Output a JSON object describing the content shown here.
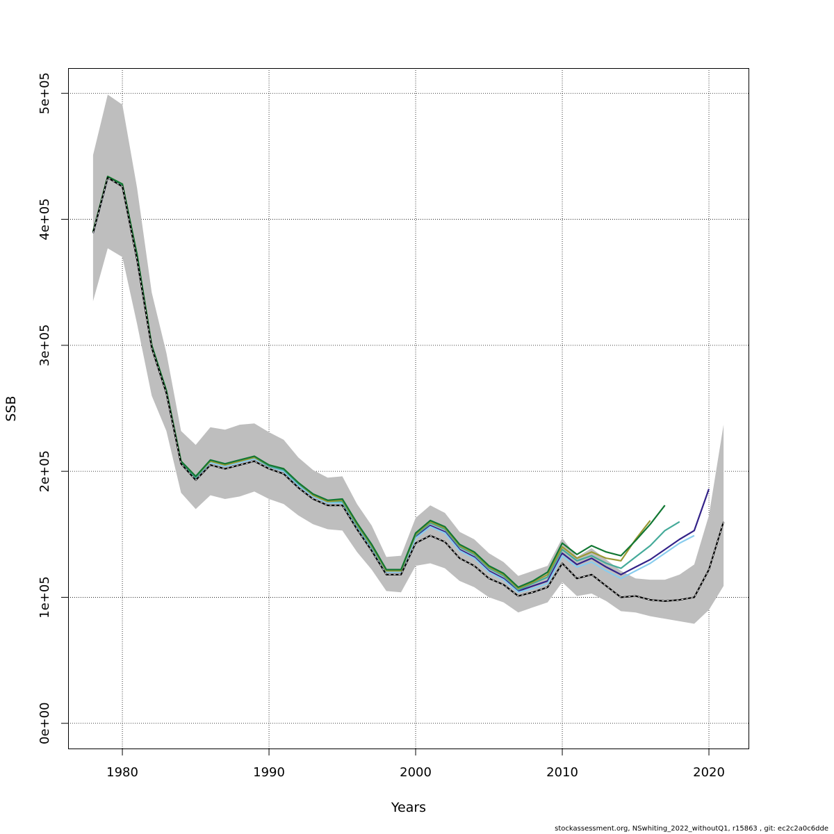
{
  "chart_data": {
    "type": "line",
    "xlabel": "Years",
    "ylabel": "SSB",
    "xlim": [
      1976.3,
      2022.7
    ],
    "ylim": [
      -20000,
      520000
    ],
    "x_ticks": [
      1980,
      1990,
      2000,
      2010,
      2020
    ],
    "x_tick_labels": [
      "1980",
      "1990",
      "2000",
      "2010",
      "2020"
    ],
    "y_ticks": [
      0,
      100000,
      200000,
      300000,
      400000,
      500000
    ],
    "y_tick_labels": [
      "0e+00",
      "1e+05",
      "2e+05",
      "3e+05",
      "4e+05",
      "5e+05"
    ],
    "grid": true,
    "confidence_band": {
      "x": [
        1978,
        1979,
        1980,
        1981,
        1982,
        1983,
        1984,
        1985,
        1986,
        1987,
        1988,
        1989,
        1990,
        1991,
        1992,
        1993,
        1994,
        1995,
        1996,
        1997,
        1998,
        1999,
        2000,
        2001,
        2002,
        2003,
        2004,
        2005,
        2006,
        2007,
        2008,
        2009,
        2010,
        2011,
        2012,
        2013,
        2014,
        2015,
        2016,
        2017,
        2018,
        2019,
        2020,
        2021
      ],
      "lower": [
        335000,
        377000,
        370000,
        317000,
        260000,
        232000,
        183000,
        170000,
        181000,
        178000,
        180000,
        184000,
        178000,
        174000,
        165000,
        158000,
        154000,
        153000,
        136000,
        122000,
        105000,
        104000,
        125000,
        127000,
        123000,
        113000,
        108000,
        100000,
        96000,
        88000,
        92000,
        96000,
        112000,
        101000,
        103000,
        97000,
        89000,
        88000,
        85000,
        83000,
        81000,
        79000,
        90000,
        109000
      ],
      "upper": [
        451000,
        499000,
        491000,
        425000,
        342000,
        294000,
        232000,
        221000,
        235000,
        233000,
        237000,
        238000,
        231000,
        225000,
        211000,
        201000,
        195000,
        196000,
        174000,
        157000,
        132000,
        133000,
        163000,
        173000,
        167000,
        152000,
        146000,
        135000,
        128000,
        117000,
        121000,
        125000,
        147000,
        132000,
        139000,
        130000,
        121000,
        115000,
        114000,
        114000,
        118000,
        126000,
        165000,
        237000
      ]
    },
    "series": [
      {
        "color": "#000000",
        "dashed_overlay": true,
        "x": [
          1978,
          1979,
          1980,
          1981,
          1982,
          1983,
          1984,
          1985,
          1986,
          1987,
          1988,
          1989,
          1990,
          1991,
          1992,
          1993,
          1994,
          1995,
          1996,
          1997,
          1998,
          1999,
          2000,
          2001,
          2002,
          2003,
          2004,
          2005,
          2006,
          2007,
          2008,
          2009,
          2010,
          2011,
          2012,
          2013,
          2014,
          2015,
          2016,
          2017,
          2018,
          2019,
          2020,
          2021
        ],
        "values": [
          389000,
          433000,
          426000,
          368000,
          298000,
          262000,
          206000,
          193000,
          205000,
          202000,
          205000,
          208000,
          202000,
          198000,
          187000,
          178000,
          173000,
          173000,
          154000,
          137000,
          118000,
          118000,
          143000,
          149000,
          144000,
          131000,
          125000,
          115000,
          110000,
          101000,
          104000,
          108000,
          127000,
          115000,
          118000,
          109000,
          100000,
          101000,
          98000,
          97000,
          98000,
          100000,
          122000,
          160000
        ]
      },
      {
        "color": "#332288",
        "x": [
          1978,
          1979,
          1980,
          1981,
          1982,
          1983,
          1984,
          1985,
          1986,
          1987,
          1988,
          1989,
          1990,
          1991,
          1992,
          1993,
          1994,
          1995,
          1996,
          1997,
          1998,
          1999,
          2000,
          2001,
          2002,
          2003,
          2004,
          2005,
          2006,
          2007,
          2008,
          2009,
          2010,
          2011,
          2012,
          2013,
          2014,
          2015,
          2016,
          2017,
          2018,
          2019,
          2020
        ],
        "values": [
          389000,
          433000,
          427000,
          370000,
          299000,
          263000,
          207000,
          195000,
          207000,
          204000,
          207000,
          210000,
          204000,
          200000,
          189000,
          180000,
          175000,
          175000,
          156000,
          139000,
          120000,
          120000,
          148000,
          157000,
          152000,
          138000,
          132000,
          121000,
          115000,
          105000,
          109000,
          113000,
          135000,
          126000,
          131000,
          124000,
          118000,
          124000,
          130000,
          138000,
          146000,
          153000,
          186000
        ]
      },
      {
        "color": "#88CCEE",
        "x": [
          1978,
          1979,
          1980,
          1981,
          1982,
          1983,
          1984,
          1985,
          1986,
          1987,
          1988,
          1989,
          1990,
          1991,
          1992,
          1993,
          1994,
          1995,
          1996,
          1997,
          1998,
          1999,
          2000,
          2001,
          2002,
          2003,
          2004,
          2005,
          2006,
          2007,
          2008,
          2009,
          2010,
          2011,
          2012,
          2013,
          2014,
          2015,
          2016,
          2017,
          2018,
          2019
        ],
        "values": [
          389000,
          433000,
          427000,
          370000,
          299000,
          263000,
          207000,
          195000,
          207000,
          204000,
          207000,
          210000,
          204000,
          200000,
          189000,
          180000,
          175000,
          175000,
          156000,
          139000,
          120000,
          120000,
          147000,
          156000,
          151000,
          137000,
          131000,
          120000,
          114000,
          104000,
          107000,
          111000,
          133000,
          124000,
          128000,
          121000,
          115000,
          121000,
          127000,
          135000,
          143000,
          149000
        ]
      },
      {
        "color": "#44AA99",
        "x": [
          1978,
          1979,
          1980,
          1981,
          1982,
          1983,
          1984,
          1985,
          1986,
          1987,
          1988,
          1989,
          1990,
          1991,
          1992,
          1993,
          1994,
          1995,
          1996,
          1997,
          1998,
          1999,
          2000,
          2001,
          2002,
          2003,
          2004,
          2005,
          2006,
          2007,
          2008,
          2009,
          2010,
          2011,
          2012,
          2013,
          2014,
          2015,
          2016,
          2017,
          2018
        ],
        "values": [
          390000,
          434000,
          427000,
          371000,
          300000,
          264000,
          207000,
          195000,
          208000,
          205000,
          208000,
          211000,
          204000,
          201000,
          190000,
          181000,
          176000,
          176000,
          157000,
          140000,
          121000,
          121000,
          149000,
          159000,
          154000,
          140000,
          134000,
          123000,
          117000,
          106000,
          111000,
          116000,
          138000,
          129000,
          133000,
          127000,
          123000,
          132000,
          141000,
          153000,
          160000
        ]
      },
      {
        "color": "#999933",
        "x": [
          1978,
          1979,
          1980,
          1981,
          1982,
          1983,
          1984,
          1985,
          1986,
          1987,
          1988,
          1989,
          1990,
          1991,
          1992,
          1993,
          1994,
          1995,
          1996,
          1997,
          1998,
          1999,
          2000,
          2001,
          2002,
          2003,
          2004,
          2005,
          2006,
          2007,
          2008,
          2009,
          2010,
          2011,
          2012,
          2013,
          2014,
          2015,
          2016
        ],
        "values": [
          390000,
          434000,
          428000,
          372000,
          300000,
          264000,
          208000,
          196000,
          208000,
          205000,
          208000,
          211000,
          205000,
          202000,
          191000,
          181000,
          176000,
          177000,
          158000,
          141000,
          121000,
          121000,
          150000,
          160000,
          155000,
          141000,
          135000,
          124000,
          118000,
          107000,
          112000,
          118000,
          140000,
          131000,
          136000,
          131000,
          129000,
          146000,
          161000
        ]
      },
      {
        "color": "#117733",
        "x": [
          1978,
          1979,
          1980,
          1981,
          1982,
          1983,
          1984,
          1985,
          1986,
          1987,
          1988,
          1989,
          1990,
          1991,
          1992,
          1993,
          1994,
          1995,
          1996,
          1997,
          1998,
          1999,
          2000,
          2001,
          2002,
          2003,
          2004,
          2005,
          2006,
          2007,
          2008,
          2009,
          2010,
          2011,
          2012,
          2013,
          2014,
          2015,
          2016,
          2017
        ],
        "values": [
          390000,
          434000,
          428000,
          372000,
          300000,
          264000,
          208000,
          196000,
          209000,
          206000,
          209000,
          212000,
          205000,
          202000,
          191000,
          182000,
          177000,
          178000,
          159000,
          142000,
          122000,
          122000,
          151000,
          161000,
          156000,
          142000,
          136000,
          125000,
          119000,
          108000,
          113000,
          120000,
          143000,
          134000,
          141000,
          136000,
          133000,
          145000,
          158000,
          173000
        ]
      }
    ]
  },
  "footer": {
    "text": "stockassessment.org, NSwhiting_2022_withoutQ1, r15863 , git: ec2c2a0c6dde"
  }
}
